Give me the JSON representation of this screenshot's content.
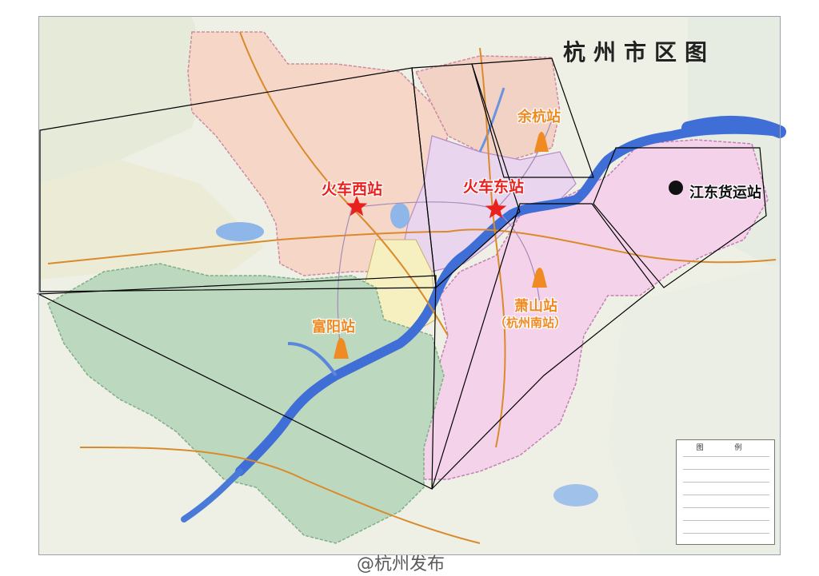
{
  "title": "杭州市区图",
  "stations": [
    {
      "id": "west",
      "label": "火车西站",
      "sublabel": "",
      "marker": "red-star-icon",
      "color": "#e8211e"
    },
    {
      "id": "east",
      "label": "火车东站",
      "sublabel": "",
      "marker": "red-star-icon",
      "color": "#e8211e"
    },
    {
      "id": "yuhang",
      "label": "余杭站",
      "sublabel": "",
      "marker": "orange-cone-icon",
      "color": "#f08a22"
    },
    {
      "id": "xiaoshan",
      "label": "萧山站",
      "sublabel": "（杭州南站）",
      "marker": "orange-cone-icon",
      "color": "#f08a22"
    },
    {
      "id": "fuyang",
      "label": "富阳站",
      "sublabel": "",
      "marker": "orange-cone-icon",
      "color": "#f08a22"
    },
    {
      "id": "jiangdong",
      "label": "江东货运站",
      "sublabel": "",
      "marker": "black-dot-icon",
      "color": "#111111"
    }
  ],
  "legend": {
    "title": "图 例"
  },
  "watermark": "@杭州发布",
  "colors": {
    "yuhang_district": "#f6d7c7",
    "fuyang_district": "#bcd9bf",
    "xiaoshan_district": "#f4d3ea",
    "city_center": "#e9d6ee",
    "river": "#3f6fd6",
    "outer_area": "#eef0e6"
  }
}
